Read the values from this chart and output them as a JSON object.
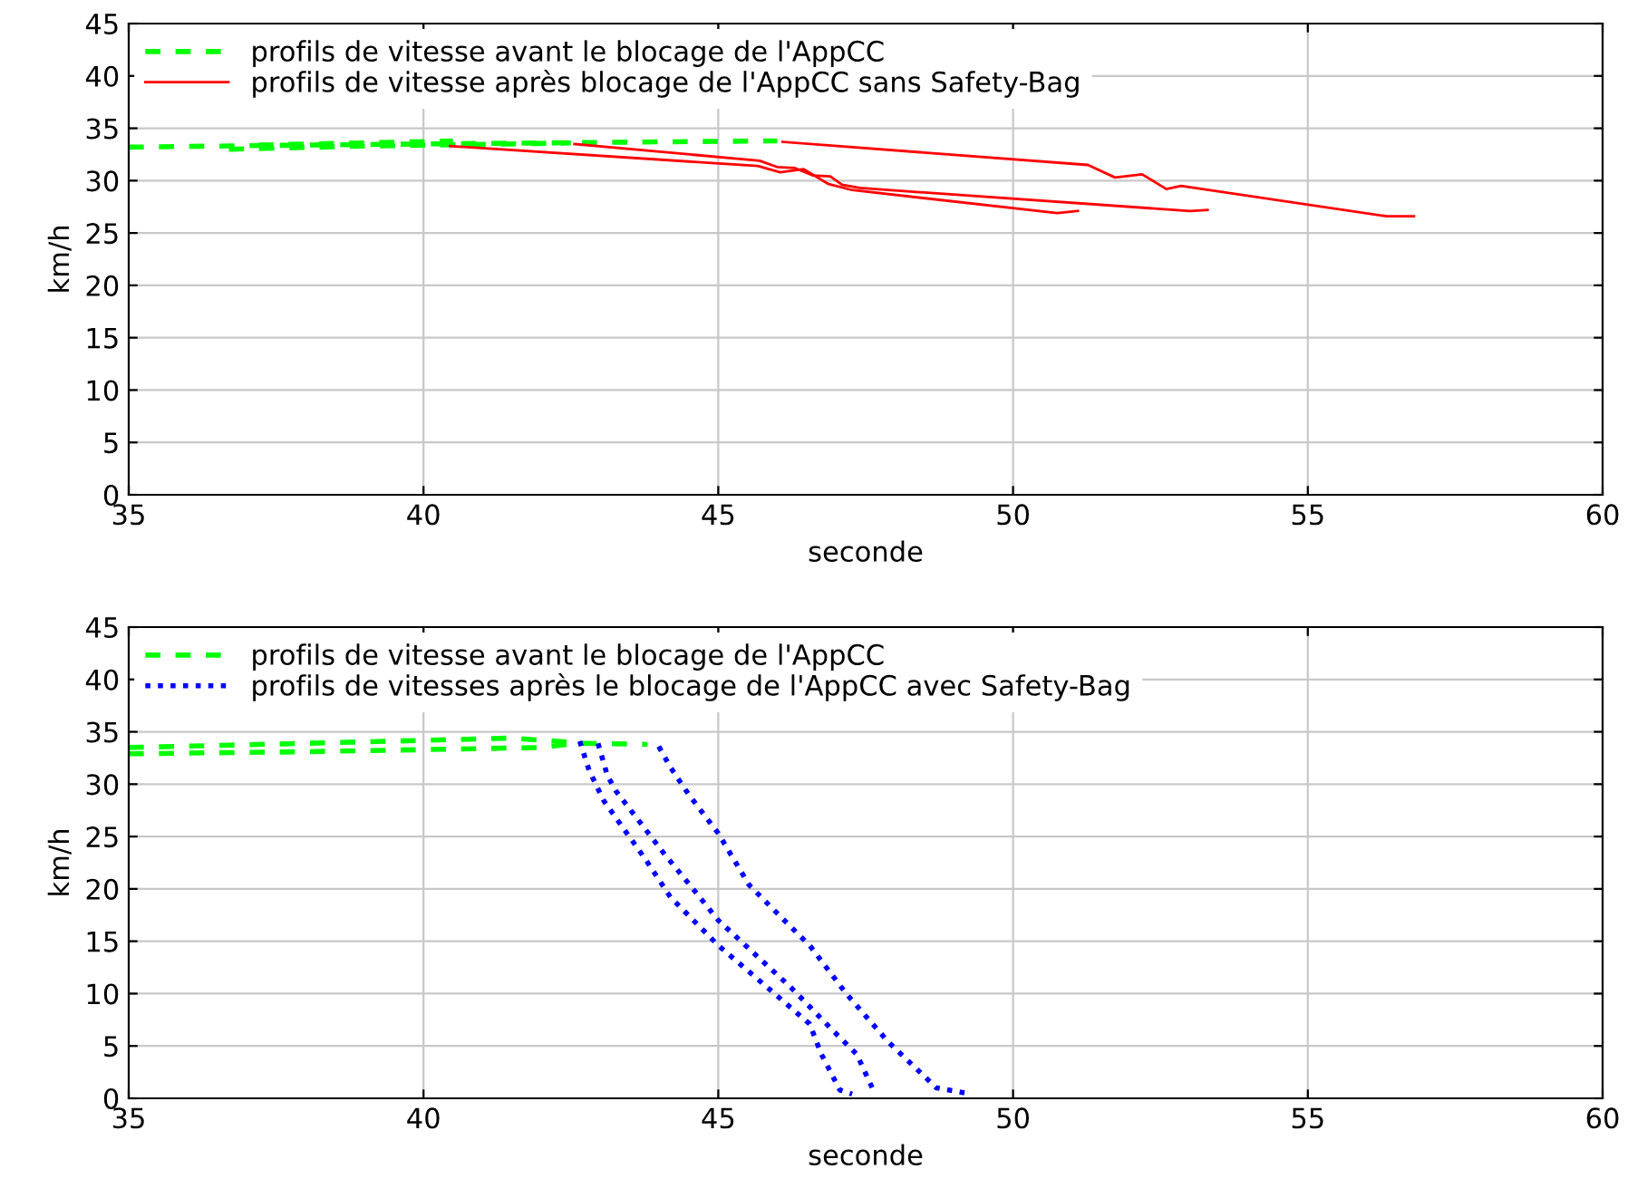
{
  "chart_data": [
    {
      "type": "line",
      "xlabel": "seconde",
      "ylabel": "km/h",
      "xlim": [
        35,
        60
      ],
      "ylim": [
        0,
        45
      ],
      "xticks": [
        35,
        40,
        45,
        50,
        55,
        60
      ],
      "yticks": [
        0,
        5,
        10,
        15,
        20,
        25,
        30,
        35,
        40,
        45
      ],
      "grid": true,
      "legend": "top left",
      "marker": "none",
      "series": [
        {
          "name": "profils de vitesse avant le blocage de l'AppCC",
          "color": "#00ff00",
          "line_style": "dashed",
          "x": [
            35,
            38,
            42,
            46
          ],
          "values": [
            33.2,
            33.4,
            33.6,
            33.8
          ]
        },
        {
          "color": "#00ff00",
          "line_style": "dashed",
          "x": [
            36.7,
            39,
            42.5
          ],
          "values": [
            33.0,
            33.3,
            33.6
          ]
        },
        {
          "color": "#00ff00",
          "line_style": "dashed",
          "x": [
            37.2,
            39,
            40.5
          ],
          "values": [
            33.4,
            33.6,
            33.8
          ]
        },
        {
          "name": "profils de vitesse après blocage de l'AppCC sans Safety-Bag",
          "color": "#ff0000",
          "line_style": "solid",
          "x": [
            46.09,
            51.27,
            51.73,
            52.19,
            52.6,
            52.85,
            56.34,
            56.8
          ],
          "values": [
            33.7,
            31.5,
            30.3,
            30.6,
            29.2,
            29.5,
            26.6,
            26.6
          ]
        },
        {
          "color": "#ff0000",
          "line_style": "solid",
          "x": [
            42.56,
            45.7,
            46.0,
            46.3,
            46.6,
            46.9,
            47.1,
            47.4,
            53.0,
            53.3
          ],
          "values": [
            33.5,
            31.9,
            31.3,
            31.2,
            30.5,
            30.4,
            29.6,
            29.3,
            27.1,
            27.2
          ]
        },
        {
          "color": "#ff0000",
          "line_style": "solid",
          "x": [
            40.45,
            45.67,
            46.05,
            46.45,
            46.86,
            47.27,
            50.75,
            51.1
          ],
          "values": [
            33.3,
            31.4,
            30.8,
            31.1,
            29.7,
            29.1,
            26.9,
            27.1
          ]
        }
      ]
    },
    {
      "type": "line",
      "xlabel": "seconde",
      "ylabel": "km/h",
      "xlim": [
        35,
        60
      ],
      "ylim": [
        0,
        45
      ],
      "xticks": [
        35,
        40,
        45,
        50,
        55,
        60
      ],
      "yticks": [
        0,
        5,
        10,
        15,
        20,
        25,
        30,
        35,
        40,
        45
      ],
      "grid": true,
      "legend": "top left",
      "marker": "none",
      "series": [
        {
          "name": "profils de vitesse avant le blocage de l'AppCC",
          "color": "#00ff00",
          "line_style": "dashed",
          "x": [
            35,
            38,
            42,
            42.6,
            43.8
          ],
          "values": [
            32.9,
            33.1,
            33.5,
            33.9,
            33.8
          ]
        },
        {
          "color": "#00ff00",
          "line_style": "dashed",
          "x": [
            35,
            38,
            41.5,
            42.5
          ],
          "values": [
            33.5,
            33.9,
            34.4,
            34.0
          ]
        },
        {
          "name": "profils de vitesses après le blocage de l'AppCC avec Safety-Bag",
          "color": "#0000ff",
          "line_style": "dotted",
          "x": [
            42.65,
            42.81,
            43.06,
            43.78,
            44.19,
            45.0,
            45.83,
            46.55,
            46.75,
            47.06,
            47.27
          ],
          "values": [
            34.1,
            31.3,
            28.4,
            22.7,
            19.2,
            14.6,
            10.6,
            7.1,
            4.2,
            0.8,
            0.4
          ]
        },
        {
          "color": "#0000ff",
          "line_style": "dotted",
          "x": [
            42.96,
            43.12,
            43.27,
            44.09,
            44.6,
            45.0,
            46.23,
            46.94,
            47.35,
            47.66
          ],
          "values": [
            33.9,
            30.8,
            29.3,
            23.3,
            19.8,
            17.0,
            10.6,
            6.5,
            4.2,
            0.4
          ]
        },
        {
          "color": "#0000ff",
          "line_style": "dotted",
          "x": [
            43.99,
            44.19,
            44.5,
            45.0,
            45.52,
            46.03,
            46.55,
            47.17,
            47.88,
            48.7,
            49.2
          ],
          "values": [
            33.6,
            31.6,
            29.0,
            25.3,
            20.4,
            17.5,
            14.6,
            10.0,
            5.4,
            1.0,
            0.5
          ]
        }
      ]
    }
  ]
}
